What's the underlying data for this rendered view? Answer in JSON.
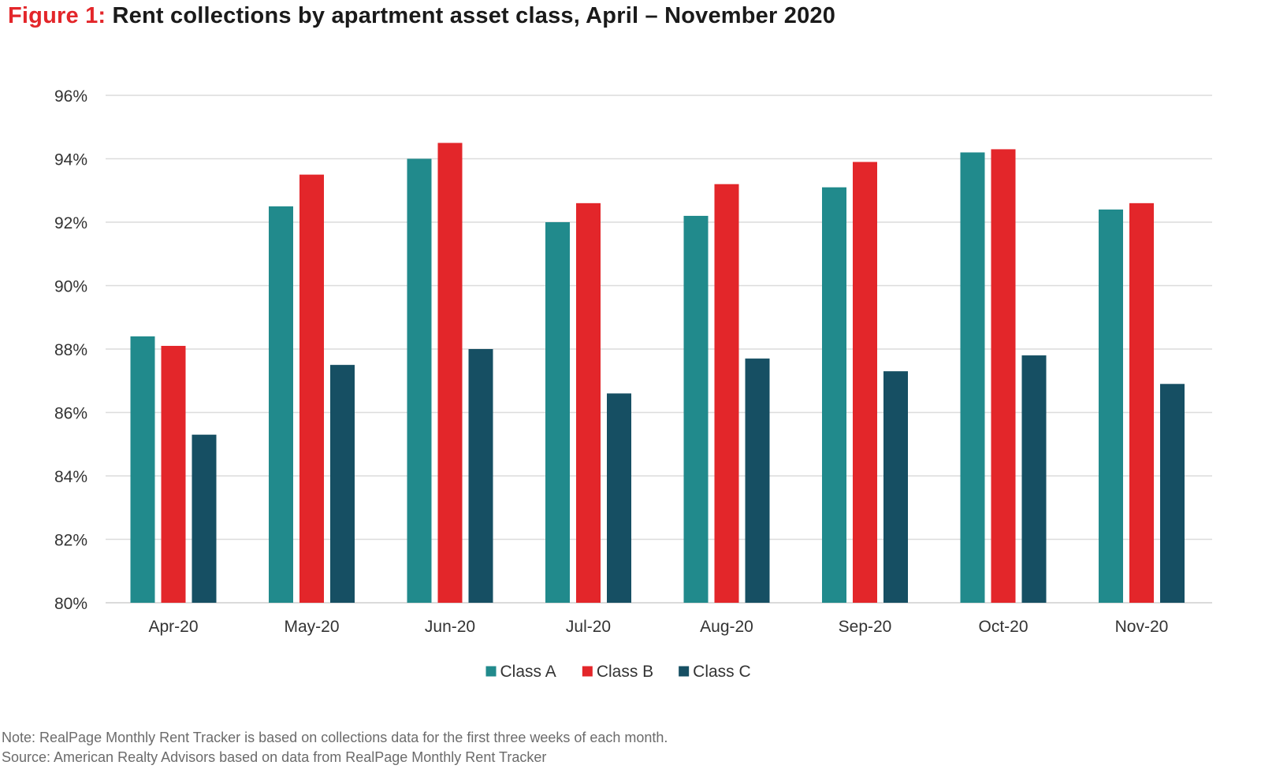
{
  "title": {
    "prefix": "Figure 1:",
    "text": "Rent collections by apartment asset class, April – November 2020"
  },
  "notes": {
    "note": "Note: RealPage Monthly Rent Tracker is based on collections data for the first three weeks of each month.",
    "source": "Source: American Realty Advisors based on data from RealPage Monthly Rent Tracker"
  },
  "chart_data": {
    "type": "bar",
    "categories": [
      "Apr-20",
      "May-20",
      "Jun-20",
      "Jul-20",
      "Aug-20",
      "Sep-20",
      "Oct-20",
      "Nov-20"
    ],
    "series": [
      {
        "name": "Class A",
        "color": "#218a8c",
        "values": [
          88.4,
          92.5,
          94.0,
          92.0,
          92.2,
          93.1,
          94.2,
          92.4
        ]
      },
      {
        "name": "Class B",
        "color": "#e3262a",
        "values": [
          88.1,
          93.5,
          94.5,
          92.6,
          93.2,
          93.9,
          94.3,
          92.6
        ]
      },
      {
        "name": "Class C",
        "color": "#164f63",
        "values": [
          85.3,
          87.5,
          88.0,
          86.6,
          87.7,
          87.3,
          87.8,
          86.9
        ]
      }
    ],
    "ylim": [
      80,
      96
    ],
    "yticks": [
      "80%",
      "82%",
      "84%",
      "86%",
      "88%",
      "90%",
      "92%",
      "94%",
      "96%"
    ],
    "ytick_values": [
      80,
      82,
      84,
      86,
      88,
      90,
      92,
      94,
      96
    ],
    "grid": true,
    "legend_position": "bottom"
  }
}
